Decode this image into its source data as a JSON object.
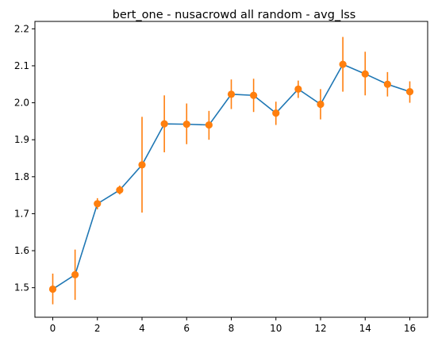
{
  "chart_data": {
    "type": "line",
    "title": "bert_one - nusacrowd all random - avg_lss",
    "xlabel": "",
    "ylabel": "",
    "xlim": [
      -0.8,
      16.8
    ],
    "ylim": [
      1.42,
      2.22
    ],
    "x_ticks": [
      0,
      2,
      4,
      6,
      8,
      10,
      12,
      14,
      16
    ],
    "y_ticks": [
      1.5,
      1.6,
      1.7,
      1.8,
      1.9,
      2.0,
      2.1,
      2.2
    ],
    "grid": false,
    "legend": "none",
    "series": [
      {
        "color": "#1f77b4",
        "marker_color": "#ff7f0e",
        "x": [
          0,
          1,
          2,
          3,
          4,
          5,
          6,
          7,
          8,
          9,
          10,
          11,
          12,
          13,
          14,
          15,
          16
        ],
        "y": [
          1.496,
          1.535,
          1.727,
          1.764,
          1.832,
          1.943,
          1.942,
          1.94,
          2.023,
          2.02,
          1.972,
          2.037,
          1.996,
          2.104,
          2.078,
          2.05,
          2.03
        ],
        "err_low": [
          1.455,
          1.467,
          1.712,
          1.752,
          1.703,
          1.866,
          1.888,
          1.9,
          1.983,
          1.975,
          1.94,
          2.013,
          1.955,
          2.03,
          2.02,
          2.017,
          2.0
        ],
        "err_high": [
          1.538,
          1.603,
          1.742,
          1.776,
          1.962,
          2.02,
          1.998,
          1.978,
          2.063,
          2.065,
          2.003,
          2.06,
          2.037,
          2.178,
          2.138,
          2.083,
          2.058
        ]
      }
    ]
  }
}
